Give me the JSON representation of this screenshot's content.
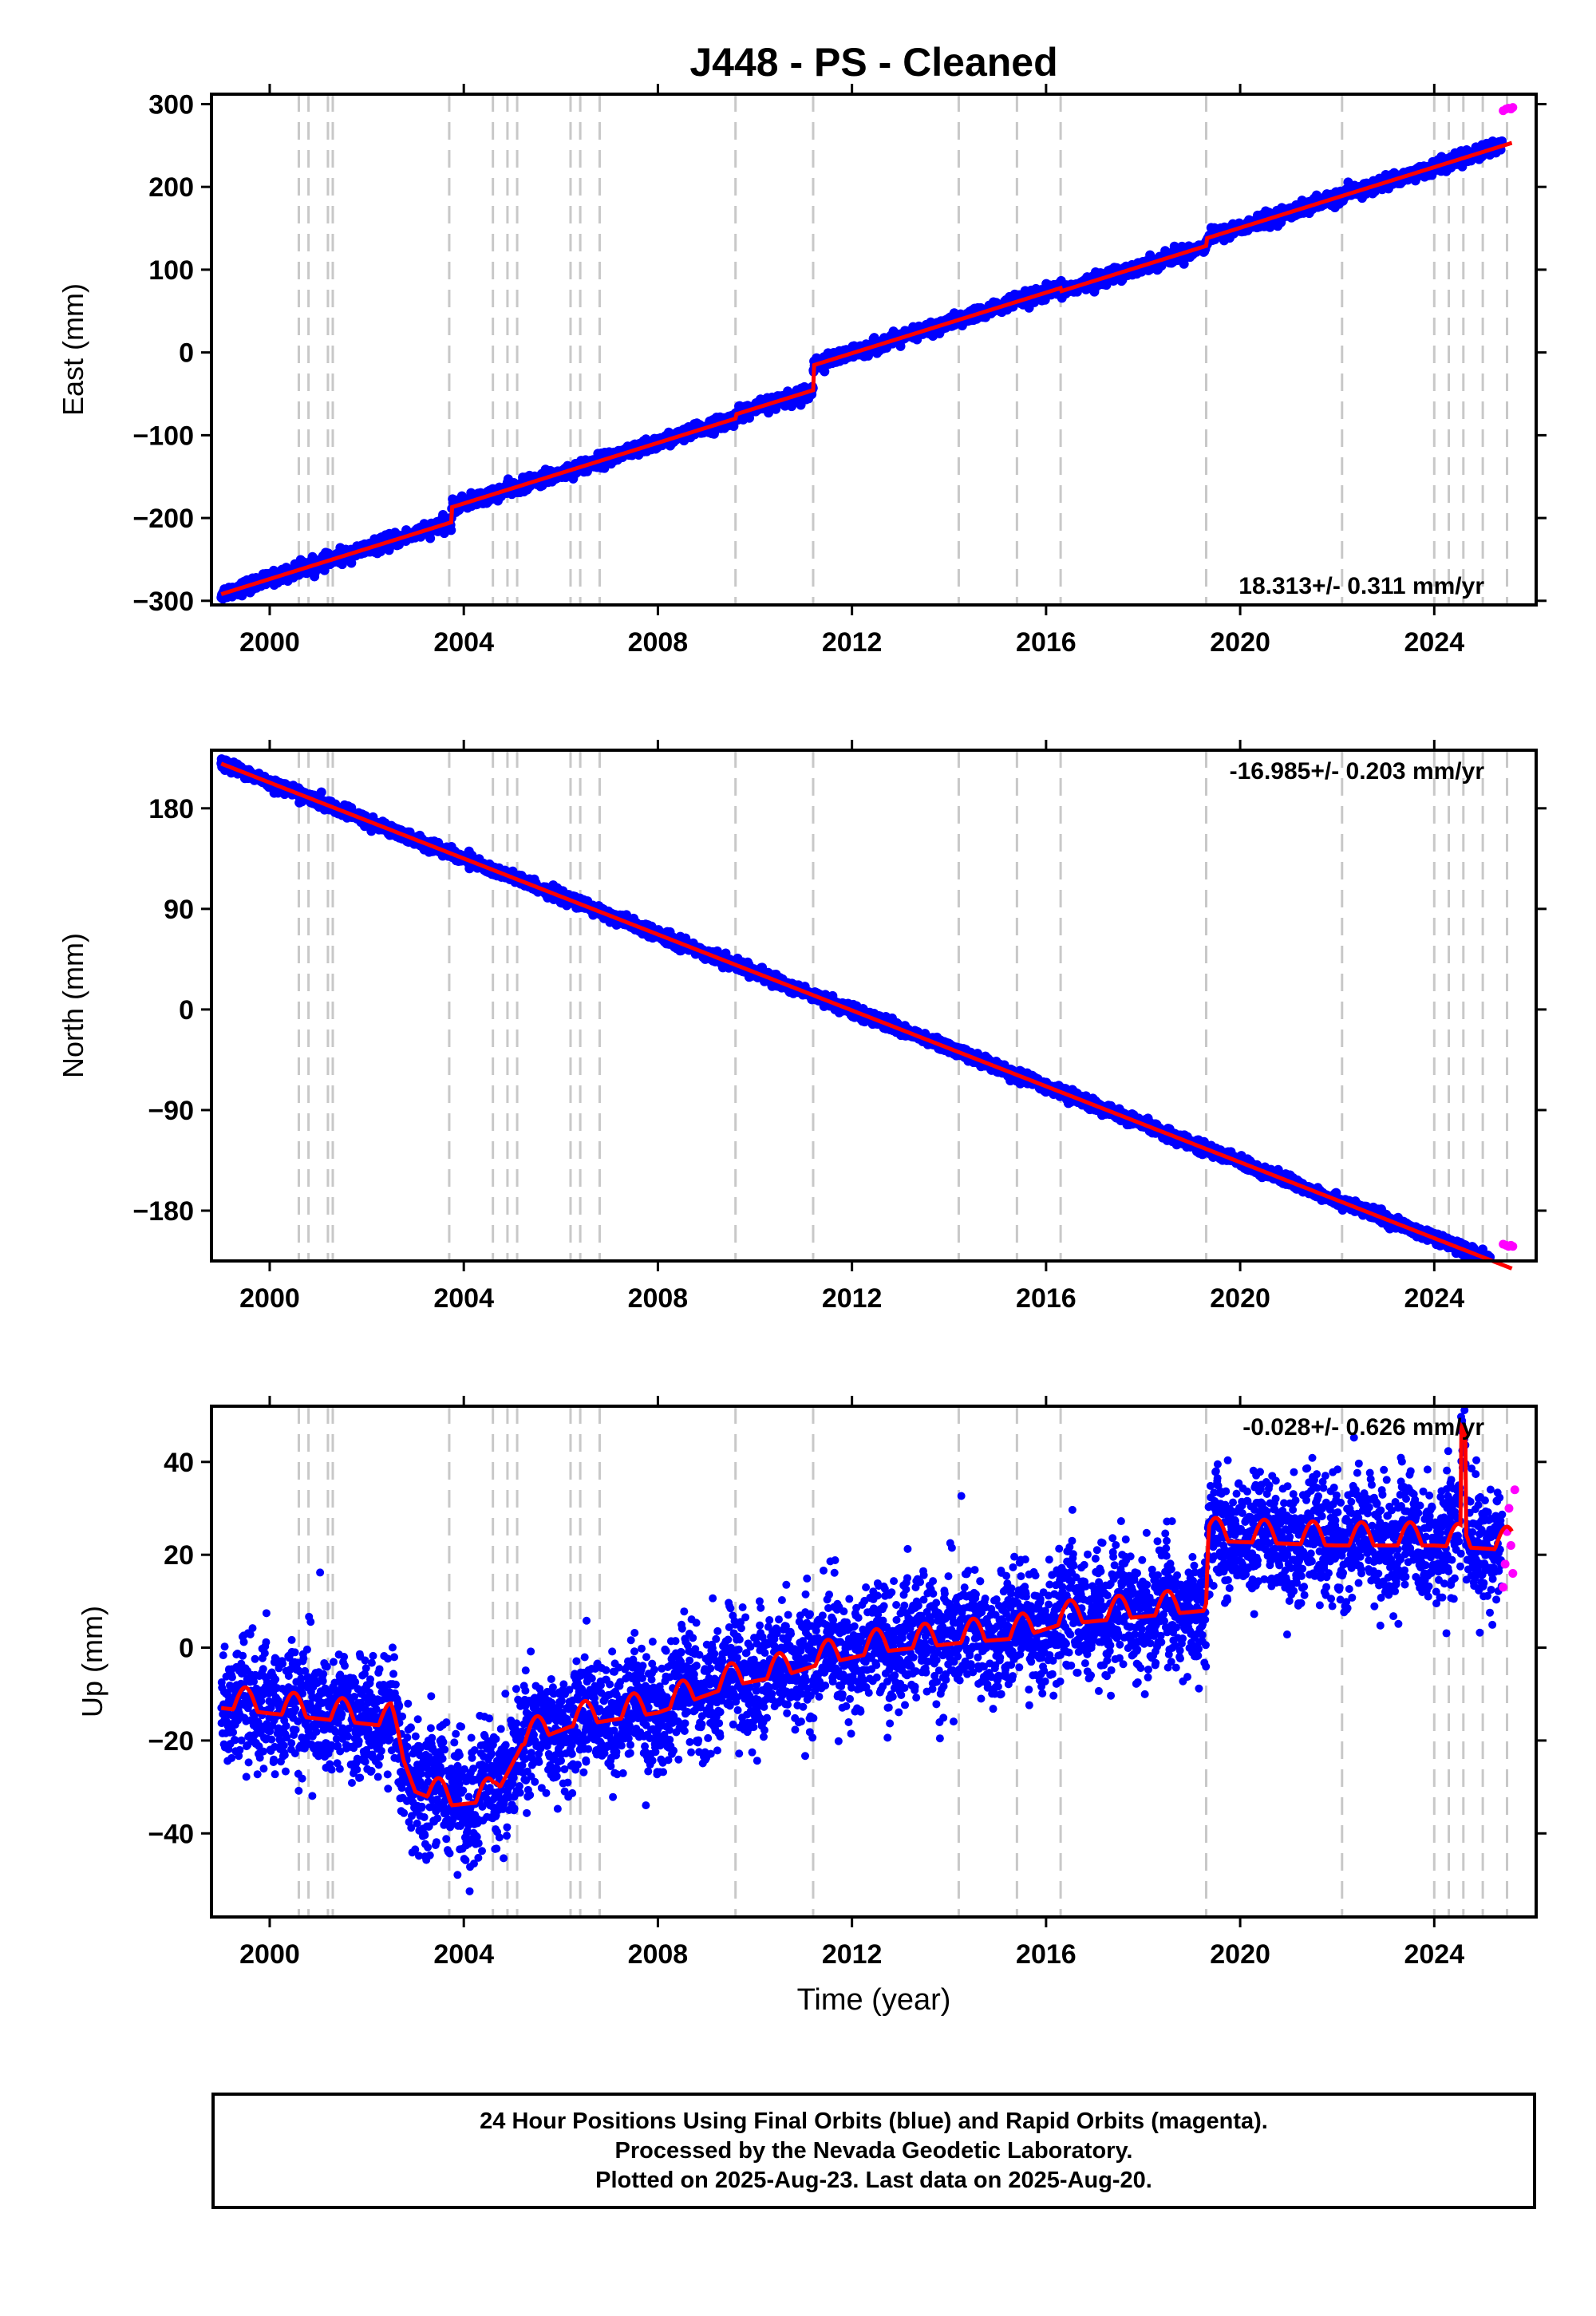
{
  "title": "J448  - PS - Cleaned",
  "xlabel": "Time (year)",
  "footer": {
    "line1": "24 Hour Positions Using Final Orbits (blue) and Rapid Orbits (magenta).",
    "line2": "Processed by the Nevada Geodetic Laboratory.",
    "line3": "Plotted on 2025-Aug-23. Last data on 2025-Aug-20."
  },
  "colors": {
    "final_orbits": "#0000ff",
    "rapid_orbits": "#ff00ff",
    "model": "#ff0000",
    "event_lines": "#c8c8c8"
  },
  "chart_data": [
    {
      "type": "scatter",
      "component": "east",
      "ylabel": "East (mm)",
      "xlim": [
        1998.8,
        2026.1
      ],
      "ylim": [
        -305,
        312
      ],
      "xticks": [
        2000,
        2004,
        2008,
        2012,
        2016,
        2020,
        2024
      ],
      "yticks": [
        -300,
        -200,
        -100,
        0,
        100,
        200,
        300
      ],
      "ytick_labels": [
        "−300",
        "−200",
        "−100",
        "0",
        "100",
        "200",
        "300"
      ],
      "rate_label": "18.313+/- 0.311 mm/yr",
      "rate_position": "bottom-right",
      "event_lines": [
        2000.6,
        2000.8,
        2001.2,
        2001.3,
        2003.7,
        2004.6,
        2004.9,
        2005.1,
        2006.2,
        2006.4,
        2006.8,
        2009.6,
        2011.2,
        2014.2,
        2015.4,
        2016.3,
        2019.3,
        2022.1,
        2024.0,
        2024.3,
        2024.6,
        2025.0,
        2025.5
      ],
      "model": {
        "slope_mm_per_yr": 18.313,
        "anchor": [
          1999.0,
          -292
        ],
        "offsets": [
          [
            2003.75,
            18
          ],
          [
            2009.6,
            5
          ],
          [
            2011.2,
            30
          ],
          [
            2016.3,
            -4
          ],
          [
            2019.3,
            9
          ]
        ],
        "noise_mm": 4
      },
      "rapid_points": [
        [
          2025.42,
          292
        ],
        [
          2025.48,
          294
        ],
        [
          2025.53,
          295
        ],
        [
          2025.58,
          294
        ],
        [
          2025.62,
          296
        ]
      ]
    },
    {
      "type": "scatter",
      "component": "north",
      "ylabel": "North (mm)",
      "xlim": [
        1998.8,
        2026.1
      ],
      "ylim": [
        -225,
        232
      ],
      "xticks": [
        2000,
        2004,
        2008,
        2012,
        2016,
        2020,
        2024
      ],
      "yticks": [
        -180,
        -90,
        0,
        90,
        180
      ],
      "ytick_labels": [
        "−180",
        "−90",
        "0",
        "90",
        "180"
      ],
      "rate_label": "-16.985+/- 0.203 mm/yr",
      "rate_position": "top-right",
      "event_lines": [
        2000.6,
        2000.8,
        2001.2,
        2001.3,
        2003.7,
        2004.6,
        2004.9,
        2005.1,
        2006.2,
        2006.4,
        2006.8,
        2009.6,
        2011.2,
        2014.2,
        2015.4,
        2016.3,
        2019.3,
        2022.1,
        2024.0,
        2024.3,
        2024.6,
        2025.0,
        2025.5
      ],
      "model": {
        "slope_mm_per_yr": -16.985,
        "anchor": [
          1999.0,
          220
        ],
        "offsets": [],
        "noise_mm": 2.5
      },
      "rapid_points": [
        [
          2025.42,
          -210
        ],
        [
          2025.48,
          -211
        ],
        [
          2025.53,
          -212
        ],
        [
          2025.58,
          -211
        ],
        [
          2025.62,
          -212
        ]
      ]
    },
    {
      "type": "scatter",
      "component": "up",
      "ylabel": "Up (mm)",
      "xlim": [
        1998.8,
        2026.1
      ],
      "ylim": [
        -58,
        52
      ],
      "xticks": [
        2000,
        2004,
        2008,
        2012,
        2016,
        2020,
        2024
      ],
      "yticks": [
        -40,
        -20,
        0,
        20,
        40
      ],
      "ytick_labels": [
        "−40",
        "−20",
        "0",
        "20",
        "40"
      ],
      "rate_label": "-0.028+/- 0.626 mm/yr",
      "rate_position": "top-right",
      "event_lines": [
        2000.6,
        2000.8,
        2001.2,
        2001.3,
        2003.7,
        2004.6,
        2004.9,
        2005.1,
        2006.2,
        2006.4,
        2006.8,
        2009.6,
        2011.2,
        2014.2,
        2015.4,
        2016.3,
        2019.3,
        2022.1,
        2024.0,
        2024.3,
        2024.6,
        2025.0,
        2025.5
      ],
      "model_knots": [
        [
          1999.0,
          -13
        ],
        [
          2002.5,
          -17
        ],
        [
          2003.0,
          -31
        ],
        [
          2003.7,
          -34
        ],
        [
          2004.6,
          -33
        ],
        [
          2005.2,
          -21
        ],
        [
          2006.2,
          -17
        ],
        [
          2008.0,
          -14
        ],
        [
          2009.6,
          -8
        ],
        [
          2010.6,
          -6
        ],
        [
          2011.2,
          -4
        ],
        [
          2012.5,
          -1
        ],
        [
          2014.2,
          1
        ],
        [
          2015.4,
          2
        ],
        [
          2016.3,
          5
        ],
        [
          2019.3,
          8
        ],
        [
          2019.35,
          23
        ],
        [
          2022.0,
          22
        ],
        [
          2024.0,
          22
        ],
        [
          2025.6,
          21
        ]
      ],
      "seasonal_amplitude_mm": 5,
      "noise_mm": 6.5,
      "spike": [
        2024.6,
        43
      ],
      "rapid_points": [
        [
          2025.42,
          13
        ],
        [
          2025.46,
          18
        ],
        [
          2025.5,
          25
        ],
        [
          2025.54,
          30
        ],
        [
          2025.58,
          22
        ],
        [
          2025.62,
          16
        ],
        [
          2025.66,
          34
        ]
      ]
    }
  ]
}
